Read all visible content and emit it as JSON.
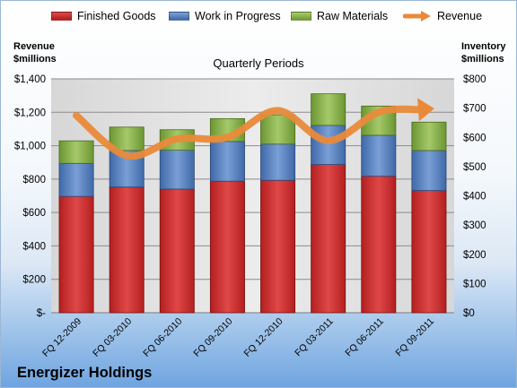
{
  "company_name": "Energizer Holdings",
  "chart_data": {
    "type": "bar",
    "subtype": "stacked-bar-with-line",
    "title": "Quarterly Periods",
    "categories": [
      "FQ 12-2009",
      "FQ 03-2010",
      "FQ 06-2010",
      "FQ 09-2010",
      "FQ 12-2010",
      "FQ 03-2011",
      "FQ 06-2011",
      "FQ 09-2011"
    ],
    "left_axis": {
      "label_line1": "Revenue",
      "label_line2": "$millions",
      "ylim": [
        0,
        1400
      ],
      "ticks": [
        0,
        200,
        400,
        600,
        800,
        1000,
        1200,
        1400
      ],
      "tick_labels": [
        "$-",
        "$200",
        "$400",
        "$600",
        "$800",
        "$1,000",
        "$1,200",
        "$1,400"
      ]
    },
    "right_axis": {
      "label_line1": "Inventory",
      "label_line2": "$millions",
      "ylim": [
        0,
        800
      ],
      "ticks": [
        0,
        100,
        200,
        300,
        400,
        500,
        600,
        700,
        800
      ],
      "tick_labels": [
        "$0",
        "$100",
        "$200",
        "$300",
        "$400",
        "$500",
        "$600",
        "$700",
        "$800"
      ]
    },
    "series": [
      {
        "name": "Finished Goods",
        "axis": "right",
        "kind": "bar",
        "color": "#cc2a2a",
        "values": [
          398,
          430,
          423,
          450,
          453,
          507,
          467,
          418
        ]
      },
      {
        "name": "Work in Progress",
        "axis": "right",
        "kind": "bar",
        "color": "#4f7bbd",
        "values": [
          113,
          125,
          133,
          136,
          124,
          134,
          140,
          137
        ]
      },
      {
        "name": "Raw Materials",
        "axis": "right",
        "kind": "bar",
        "color": "#8cb54a",
        "values": [
          77,
          80,
          70,
          78,
          100,
          108,
          100,
          97
        ]
      },
      {
        "name": "Revenue",
        "axis": "left",
        "kind": "line",
        "color": "#e98a3a",
        "values": [
          1180,
          940,
          1040,
          1050,
          1210,
          1030,
          1200,
          1220
        ]
      }
    ],
    "grid": true,
    "legend_position": "top"
  }
}
